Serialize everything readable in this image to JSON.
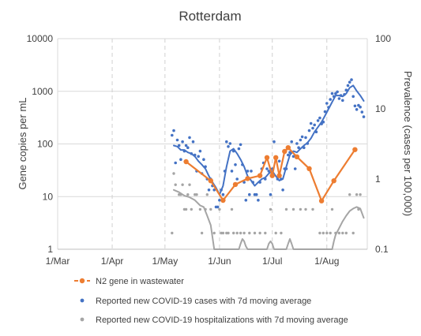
{
  "chart_data": {
    "type": "line",
    "title": "Rotterdam",
    "xlabel": "",
    "ylabel": "Gene copies per mL",
    "y2label": "Prevalence (cases per 100,000)",
    "yscale": "log",
    "y2scale": "log",
    "ylim": [
      1,
      10000
    ],
    "y2lim": [
      0.1,
      100
    ],
    "y_ticks": [
      "1",
      "10",
      "100",
      "1000",
      "10000"
    ],
    "y2_ticks": [
      "0.1",
      "1",
      "10",
      "100"
    ],
    "x_ticks": [
      "1/Mar",
      "1/Apr",
      "1/May",
      "1/Jun",
      "1/Jul",
      "1/Aug"
    ],
    "xlim": [
      "2020-03-01",
      "2020-08-24"
    ],
    "grid": true,
    "legend_position": "bottom",
    "colors": {
      "wastewater": "#ED7D31",
      "cases": "#4472C4",
      "hospitalizations": "#A5A5A5"
    },
    "series": [
      {
        "name": "N2 gene in wastewater",
        "axis": "left",
        "style": "line+markers",
        "x": [
          "2020-05-13",
          "2020-05-27",
          "2020-06-03",
          "2020-06-10",
          "2020-06-17",
          "2020-06-24",
          "2020-06-28",
          "2020-07-01",
          "2020-07-03",
          "2020-07-05",
          "2020-07-08",
          "2020-07-10",
          "2020-07-15",
          "2020-07-22",
          "2020-07-29",
          "2020-08-05",
          "2020-08-17"
        ],
        "values": [
          46,
          20,
          8.5,
          17,
          22,
          25,
          55,
          25,
          55,
          25,
          72,
          85,
          57,
          34,
          8.3,
          20,
          78
        ]
      },
      {
        "name": "Reported new COVID-19 cases with 7d moving average",
        "axis": "right",
        "style": "dots+line",
        "points_x": [
          "2020-05-05",
          "2020-05-06",
          "2020-05-07",
          "2020-05-08",
          "2020-05-09",
          "2020-05-10",
          "2020-05-11",
          "2020-05-12",
          "2020-05-13",
          "2020-05-14",
          "2020-05-15",
          "2020-05-16",
          "2020-05-17",
          "2020-05-18",
          "2020-05-19",
          "2020-05-20",
          "2020-05-21",
          "2020-05-22",
          "2020-05-23",
          "2020-05-24",
          "2020-05-25",
          "2020-05-26",
          "2020-05-27",
          "2020-05-28",
          "2020-05-29",
          "2020-05-30",
          "2020-05-31",
          "2020-06-01",
          "2020-06-02",
          "2020-06-03",
          "2020-06-04",
          "2020-06-05",
          "2020-06-06",
          "2020-06-07",
          "2020-06-08",
          "2020-06-09",
          "2020-06-10",
          "2020-06-11",
          "2020-06-12",
          "2020-06-13",
          "2020-06-14",
          "2020-06-15",
          "2020-06-16",
          "2020-06-17",
          "2020-06-18",
          "2020-06-19",
          "2020-06-20",
          "2020-06-21",
          "2020-06-22",
          "2020-06-23",
          "2020-06-24",
          "2020-06-25",
          "2020-06-26",
          "2020-06-27",
          "2020-06-28",
          "2020-06-29",
          "2020-06-30",
          "2020-07-01",
          "2020-07-02",
          "2020-07-03",
          "2020-07-04",
          "2020-07-05",
          "2020-07-06",
          "2020-07-07",
          "2020-07-08",
          "2020-07-09",
          "2020-07-10",
          "2020-07-11",
          "2020-07-12",
          "2020-07-13",
          "2020-07-14",
          "2020-07-15",
          "2020-07-16",
          "2020-07-17",
          "2020-07-18",
          "2020-07-19",
          "2020-07-20",
          "2020-07-21",
          "2020-07-22",
          "2020-07-23",
          "2020-07-24",
          "2020-07-25",
          "2020-07-26",
          "2020-07-27",
          "2020-07-28",
          "2020-07-29",
          "2020-07-30",
          "2020-07-31",
          "2020-08-01",
          "2020-08-02",
          "2020-08-03",
          "2020-08-04",
          "2020-08-05",
          "2020-08-06",
          "2020-08-07",
          "2020-08-08",
          "2020-08-09",
          "2020-08-10",
          "2020-08-11",
          "2020-08-12",
          "2020-08-13",
          "2020-08-14",
          "2020-08-15",
          "2020-08-16",
          "2020-08-17",
          "2020-08-18",
          "2020-08-19",
          "2020-08-20",
          "2020-08-21",
          "2020-08-22"
        ],
        "points": [
          4.2,
          4.9,
          1.7,
          3.6,
          3.0,
          1.9,
          3.4,
          2.5,
          3.0,
          2.8,
          3.9,
          2.3,
          3.4,
          2.2,
          1.3,
          2.1,
          2.5,
          1.2,
          1.9,
          1.5,
          1.0,
          0.7,
          1.0,
          0.8,
          0.7,
          0.4,
          0.4,
          0.5,
          0.7,
          0.6,
          1.3,
          3.4,
          2.9,
          3.2,
          1.3,
          2.5,
          1.6,
          1.0,
          2.7,
          3.1,
          1.6,
          0.9,
          0.5,
          1.3,
          0.6,
          1.3,
          0.9,
          0.6,
          0.6,
          0.5,
          0.9,
          1.4,
          1.7,
          1.0,
          1.4,
          1.3,
          0.6,
          1.4,
          3.4,
          2.0,
          1.0,
          1.8,
          1.0,
          0.7,
          1.4,
          1.4,
          2.2,
          2.4,
          3.4,
          2.1,
          1.4,
          3.2,
          2.8,
          3.6,
          4.0,
          2.8,
          3.9,
          3.2,
          4.9,
          6.2,
          5.3,
          5.9,
          4.7,
          6.8,
          7.4,
          6.1,
          6.5,
          9.1,
          12.0,
          10.5,
          13.6,
          16.5,
          15.0,
          16.5,
          17.5,
          14.0,
          15.5,
          13.2,
          16.0,
          18.5,
          21.5,
          24.0,
          26.0,
          15.0,
          11.0,
          9.8,
          11.2,
          10.6,
          9.0,
          7.7
        ],
        "avg_x": [
          "2020-05-06",
          "2020-05-08",
          "2020-05-10",
          "2020-05-12",
          "2020-05-14",
          "2020-05-16",
          "2020-05-18",
          "2020-05-20",
          "2020-05-22",
          "2020-05-24",
          "2020-05-26",
          "2020-05-28",
          "2020-05-30",
          "2020-06-01",
          "2020-06-03",
          "2020-06-05",
          "2020-06-07",
          "2020-06-09",
          "2020-06-11",
          "2020-06-13",
          "2020-06-15",
          "2020-06-17",
          "2020-06-19",
          "2020-06-21",
          "2020-06-23",
          "2020-06-25",
          "2020-06-27",
          "2020-06-29",
          "2020-07-01",
          "2020-07-03",
          "2020-07-05",
          "2020-07-07",
          "2020-07-09",
          "2020-07-11",
          "2020-07-13",
          "2020-07-15",
          "2020-07-17",
          "2020-07-19",
          "2020-07-21",
          "2020-07-23",
          "2020-07-25",
          "2020-07-27",
          "2020-07-29",
          "2020-07-31",
          "2020-08-02",
          "2020-08-04",
          "2020-08-06",
          "2020-08-08",
          "2020-08-10",
          "2020-08-12",
          "2020-08-14",
          "2020-08-16",
          "2020-08-18",
          "2020-08-20",
          "2020-08-22"
        ],
        "avg": [
          3.0,
          2.9,
          2.6,
          2.6,
          2.4,
          2.3,
          2.1,
          1.8,
          1.6,
          1.4,
          1.1,
          0.9,
          0.75,
          0.6,
          0.8,
          1.5,
          2.5,
          2.7,
          2.3,
          1.9,
          1.5,
          1.1,
          0.95,
          0.8,
          0.9,
          1.0,
          1.05,
          1.2,
          1.3,
          1.1,
          0.95,
          1.0,
          1.5,
          2.2,
          2.5,
          2.4,
          2.7,
          3.0,
          3.3,
          3.8,
          4.7,
          5.5,
          6.5,
          8.0,
          10.0,
          12.5,
          15.5,
          15.5,
          15.0,
          16.5,
          20.0,
          21.5,
          18.0,
          15.5,
          13.0
        ]
      },
      {
        "name": "Reported new COVID-19 hospitalizations with 7d moving average",
        "axis": "right",
        "style": "dots+line",
        "points_x": [
          "2020-05-05",
          "2020-05-06",
          "2020-05-07",
          "2020-05-09",
          "2020-05-10",
          "2020-05-11",
          "2020-05-12",
          "2020-05-13",
          "2020-05-14",
          "2020-05-15",
          "2020-05-16",
          "2020-05-18",
          "2020-05-19",
          "2020-05-21",
          "2020-05-22",
          "2020-05-24",
          "2020-05-25",
          "2020-05-27",
          "2020-05-29",
          "2020-06-01",
          "2020-06-02",
          "2020-06-03",
          "2020-06-05",
          "2020-06-06",
          "2020-06-08",
          "2020-06-09",
          "2020-06-11",
          "2020-06-13",
          "2020-06-15",
          "2020-06-18",
          "2020-06-21",
          "2020-06-24",
          "2020-06-27",
          "2020-06-30",
          "2020-07-03",
          "2020-07-06",
          "2020-07-09",
          "2020-07-13",
          "2020-07-17",
          "2020-07-20",
          "2020-07-24",
          "2020-07-28",
          "2020-07-30",
          "2020-08-01",
          "2020-08-03",
          "2020-08-04",
          "2020-08-06",
          "2020-08-08",
          "2020-08-10",
          "2020-08-12",
          "2020-08-14",
          "2020-08-16",
          "2020-08-18",
          "2020-08-19",
          "2020-08-20"
        ],
        "points": [
          0.17,
          1.2,
          0.83,
          0.6,
          0.6,
          0.83,
          0.37,
          0.37,
          0.6,
          0.83,
          0.37,
          0.6,
          0.6,
          0.37,
          0.17,
          0.37,
          0.6,
          0.37,
          0.17,
          0.37,
          0.17,
          0.17,
          0.17,
          0.17,
          0.37,
          0.17,
          0.17,
          0.17,
          0.17,
          0.17,
          0.17,
          0.17,
          0.17,
          0.37,
          0.17,
          0.17,
          0.37,
          0.37,
          0.37,
          0.37,
          0.37,
          0.17,
          0.17,
          0.17,
          0.17,
          0.37,
          0.17,
          0.17,
          0.17,
          0.17,
          0.6,
          0.17,
          0.6,
          0.37,
          0.6
        ],
        "avg_x": [
          "2020-05-06",
          "2020-05-09",
          "2020-05-12",
          "2020-05-15",
          "2020-05-18",
          "2020-05-21",
          "2020-05-23",
          "2020-05-25",
          "2020-05-27",
          "2020-05-29",
          "2020-06-12",
          "2020-06-13",
          "2020-06-14",
          "2020-06-15",
          "2020-06-16",
          "2020-06-17",
          "2020-06-28",
          "2020-06-29",
          "2020-06-30",
          "2020-07-01",
          "2020-07-02",
          "2020-07-09",
          "2020-07-10",
          "2020-07-11",
          "2020-07-12",
          "2020-07-13",
          "2020-08-04",
          "2020-08-05",
          "2020-08-06",
          "2020-08-08",
          "2020-08-10",
          "2020-08-12",
          "2020-08-14",
          "2020-08-16",
          "2020-08-18",
          "2020-08-20",
          "2020-08-22"
        ],
        "avg": [
          0.7,
          0.65,
          0.58,
          0.55,
          0.5,
          0.42,
          0.4,
          0.3,
          0.22,
          0.1,
          0.1,
          0.12,
          0.14,
          0.13,
          0.11,
          0.1,
          0.1,
          0.12,
          0.13,
          0.12,
          0.1,
          0.1,
          0.12,
          0.14,
          0.12,
          0.1,
          0.1,
          0.13,
          0.16,
          0.2,
          0.25,
          0.3,
          0.35,
          0.38,
          0.4,
          0.38,
          0.28
        ]
      }
    ]
  }
}
